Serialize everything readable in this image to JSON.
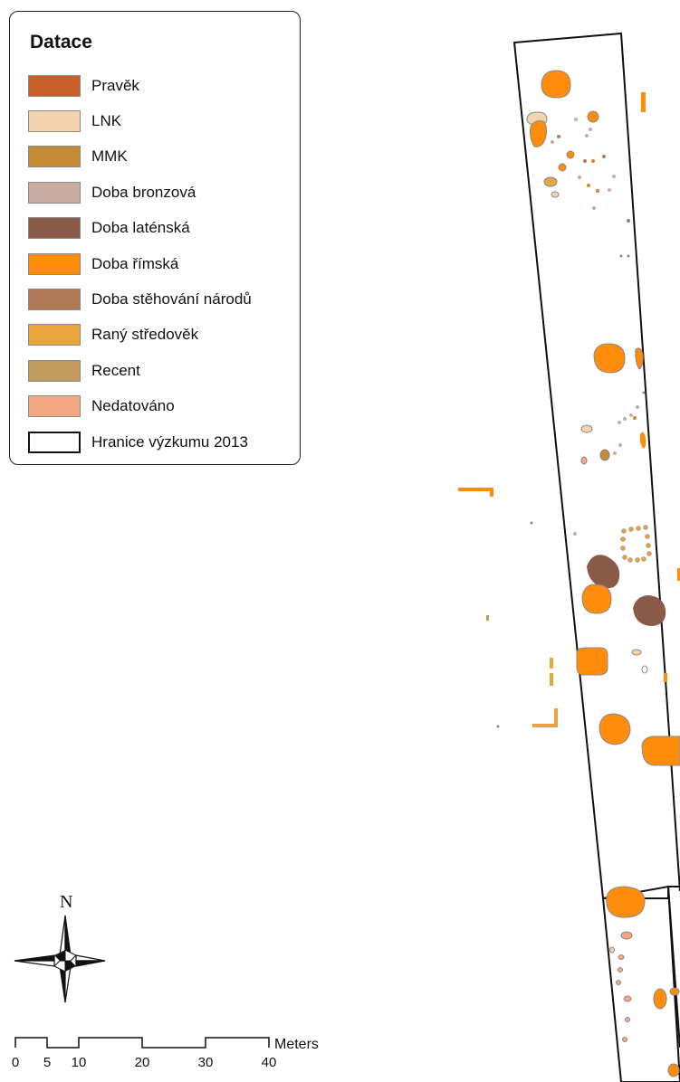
{
  "legend": {
    "title": "Datace",
    "items": [
      {
        "label": "Pravěk",
        "color": "#c8602a"
      },
      {
        "label": "LNK",
        "color": "#f2d4ae"
      },
      {
        "label": "MMK",
        "color": "#c48a36"
      },
      {
        "label": "Doba bronzová",
        "color": "#c8aca2"
      },
      {
        "label": "Doba laténská",
        "color": "#8a5a48"
      },
      {
        "label": "Doba římská",
        "color": "#ff8c0a"
      },
      {
        "label": "Doba stěhování národů",
        "color": "#b07a56"
      },
      {
        "label": "Raný středověk",
        "color": "#eaa43e"
      },
      {
        "label": "Recent",
        "color": "#c29a5e"
      },
      {
        "label": "Nedatováno",
        "color": "#f4a882"
      },
      {
        "label": "Hranice výzkumu 2013",
        "color": "#ffffff",
        "outline": true
      }
    ]
  },
  "north_arrow": {
    "label": "N"
  },
  "scale_bar": {
    "unit": "Meters",
    "ticks": [
      "0",
      "5",
      "10",
      "20",
      "30",
      "40"
    ]
  }
}
